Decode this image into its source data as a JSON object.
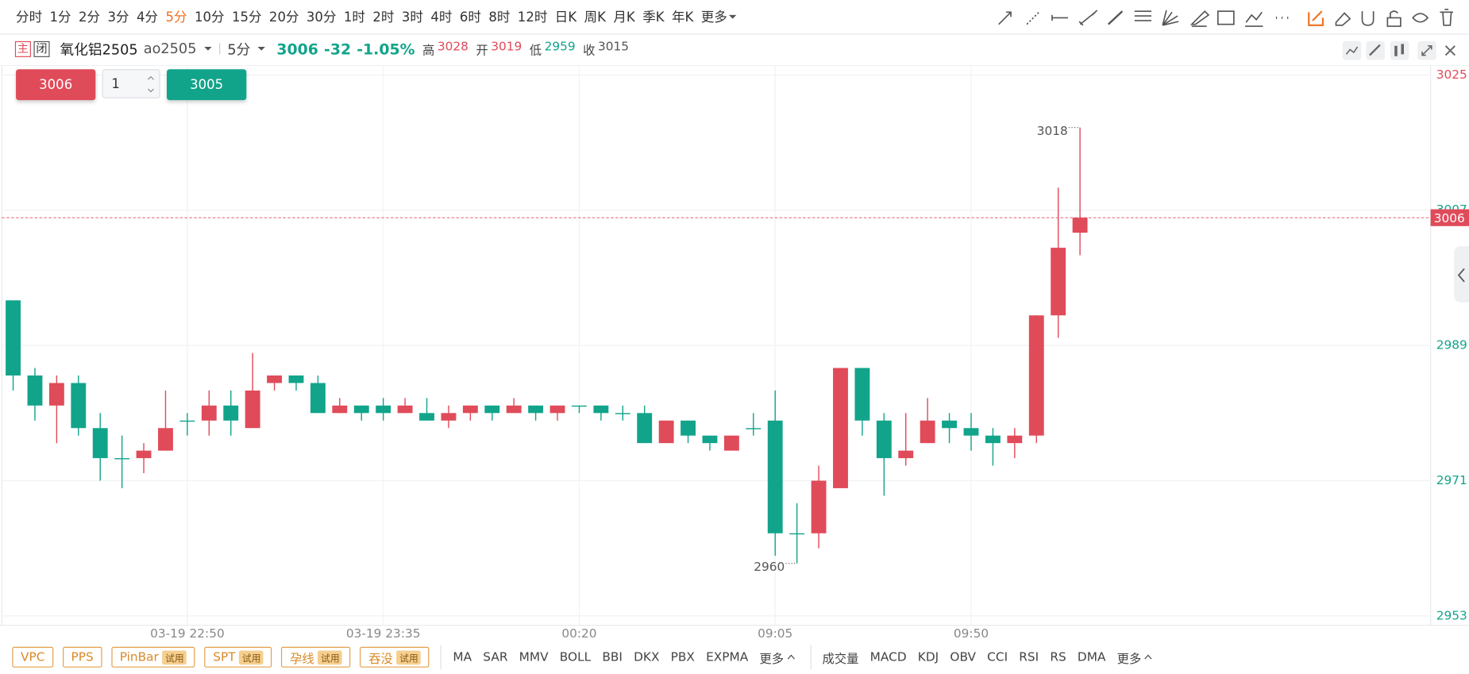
{
  "toolbar": {
    "periods": [
      "分时",
      "1分",
      "2分",
      "3分",
      "4分",
      "5分",
      "10分",
      "15分",
      "20分",
      "30分",
      "1时",
      "2时",
      "3时",
      "4时",
      "6时",
      "8时",
      "12时",
      "日K",
      "周K",
      "月K",
      "季K",
      "年K",
      "更多"
    ],
    "active_index": 5,
    "active_color": "#f0701e"
  },
  "header": {
    "badges": [
      "主",
      "闭"
    ],
    "name": "氧化铝2505",
    "code": "ao2505",
    "period": "5分",
    "price": "3006",
    "change": "-32",
    "change_pct": "-1.05%",
    "price_color": "#12a48b",
    "stats": [
      {
        "label": "高",
        "value": "3028",
        "color": "#e04b5a"
      },
      {
        "label": "开",
        "value": "3019",
        "color": "#e04b5a"
      },
      {
        "label": "低",
        "value": "2959",
        "color": "#12a48b"
      },
      {
        "label": "收",
        "value": "3015",
        "color": "#555555"
      }
    ]
  },
  "trade": {
    "buy": "3006",
    "qty": "1",
    "sell": "3005"
  },
  "chart_data": {
    "type": "candlestick",
    "up_color": "#e04b5a",
    "down_color": "#12a48b",
    "grid": true,
    "categories": [
      null,
      null,
      null,
      null,
      null,
      null,
      null,
      null,
      "03-19 22:50",
      null,
      null,
      null,
      null,
      null,
      null,
      null,
      null,
      "03-19 23:35",
      null,
      null,
      null,
      null,
      null,
      null,
      null,
      null,
      "00:20",
      null,
      null,
      null,
      null,
      null,
      null,
      null,
      null,
      "09:05",
      null,
      null,
      null,
      null,
      null,
      null,
      null,
      null,
      "09:50",
      null,
      null,
      null,
      null,
      null
    ],
    "open": [
      2995,
      2985,
      2981,
      2984,
      2978,
      2974,
      2974,
      2975,
      2979,
      2979,
      2981,
      2978,
      2984,
      2985,
      2984,
      2980,
      2981,
      2981,
      2980,
      2980,
      2979,
      2980,
      2981,
      2980,
      2981,
      2980,
      2981,
      2981,
      2980,
      2980,
      2976,
      2979,
      2977,
      2975,
      2978,
      2979,
      2964,
      2964,
      2970,
      2986,
      2979,
      2974,
      2976,
      2979,
      2978,
      2977,
      2976,
      2977,
      2993,
      3004
    ],
    "high": [
      2995,
      2986,
      2985,
      2985,
      2980,
      2977,
      2976,
      2983,
      2980,
      2983,
      2983,
      2988,
      2985,
      2985,
      2985,
      2982,
      2981,
      2982,
      2982,
      2982,
      2981,
      2981,
      2981,
      2982,
      2981,
      2981,
      2981,
      2981,
      2981,
      2981,
      2979,
      2979,
      2977,
      2977,
      2980,
      2983,
      2968,
      2973,
      2986,
      2986,
      2980,
      2980,
      2982,
      2980,
      2980,
      2978,
      2978,
      2993,
      3010,
      3018
    ],
    "low": [
      2983,
      2979,
      2976,
      2977,
      2971,
      2970,
      2972,
      2975,
      2977,
      2977,
      2977,
      2978,
      2983,
      2983,
      2980,
      2980,
      2979,
      2979,
      2980,
      2979,
      2978,
      2979,
      2979,
      2980,
      2979,
      2979,
      2980,
      2979,
      2979,
      2976,
      2976,
      2976,
      2975,
      2975,
      2977,
      2961,
      2960,
      2962,
      2970,
      2977,
      2969,
      2973,
      2976,
      2976,
      2975,
      2973,
      2974,
      2976,
      2990,
      3001
    ],
    "close": [
      2985,
      2981,
      2984,
      2978,
      2974,
      2974,
      2975,
      2978,
      2979,
      2981,
      2979,
      2983,
      2985,
      2984,
      2980,
      2981,
      2980,
      2980,
      2981,
      2979,
      2980,
      2981,
      2980,
      2981,
      2980,
      2981,
      2981,
      2980,
      2980,
      2976,
      2979,
      2977,
      2976,
      2977,
      2978,
      2964,
      2964,
      2971,
      2986,
      2979,
      2974,
      2975,
      2979,
      2978,
      2977,
      2976,
      2977,
      2993,
      3002,
      3006
    ],
    "ylim": [
      2952,
      3026
    ],
    "yticks": [
      2953,
      2971,
      2989,
      3007,
      3025
    ]
  },
  "bottom": {
    "tags": [
      {
        "name": "VPC"
      },
      {
        "name": "PPS"
      },
      {
        "name": "PinBar",
        "badge": "试用"
      },
      {
        "name": "SPT",
        "badge": "试用"
      },
      {
        "name": "孕线",
        "badge": "试用"
      },
      {
        "name": "吞没",
        "badge": "试用"
      }
    ],
    "main_indicators": [
      "MA",
      "SAR",
      "MMV",
      "BOLL",
      "BBI",
      "DKX",
      "PBX",
      "EXPMA",
      "更多"
    ],
    "sub_indicators": [
      "成交量",
      "MACD",
      "KDJ",
      "OBV",
      "CCI",
      "RSI",
      "RS",
      "DMA",
      "更多"
    ]
  }
}
